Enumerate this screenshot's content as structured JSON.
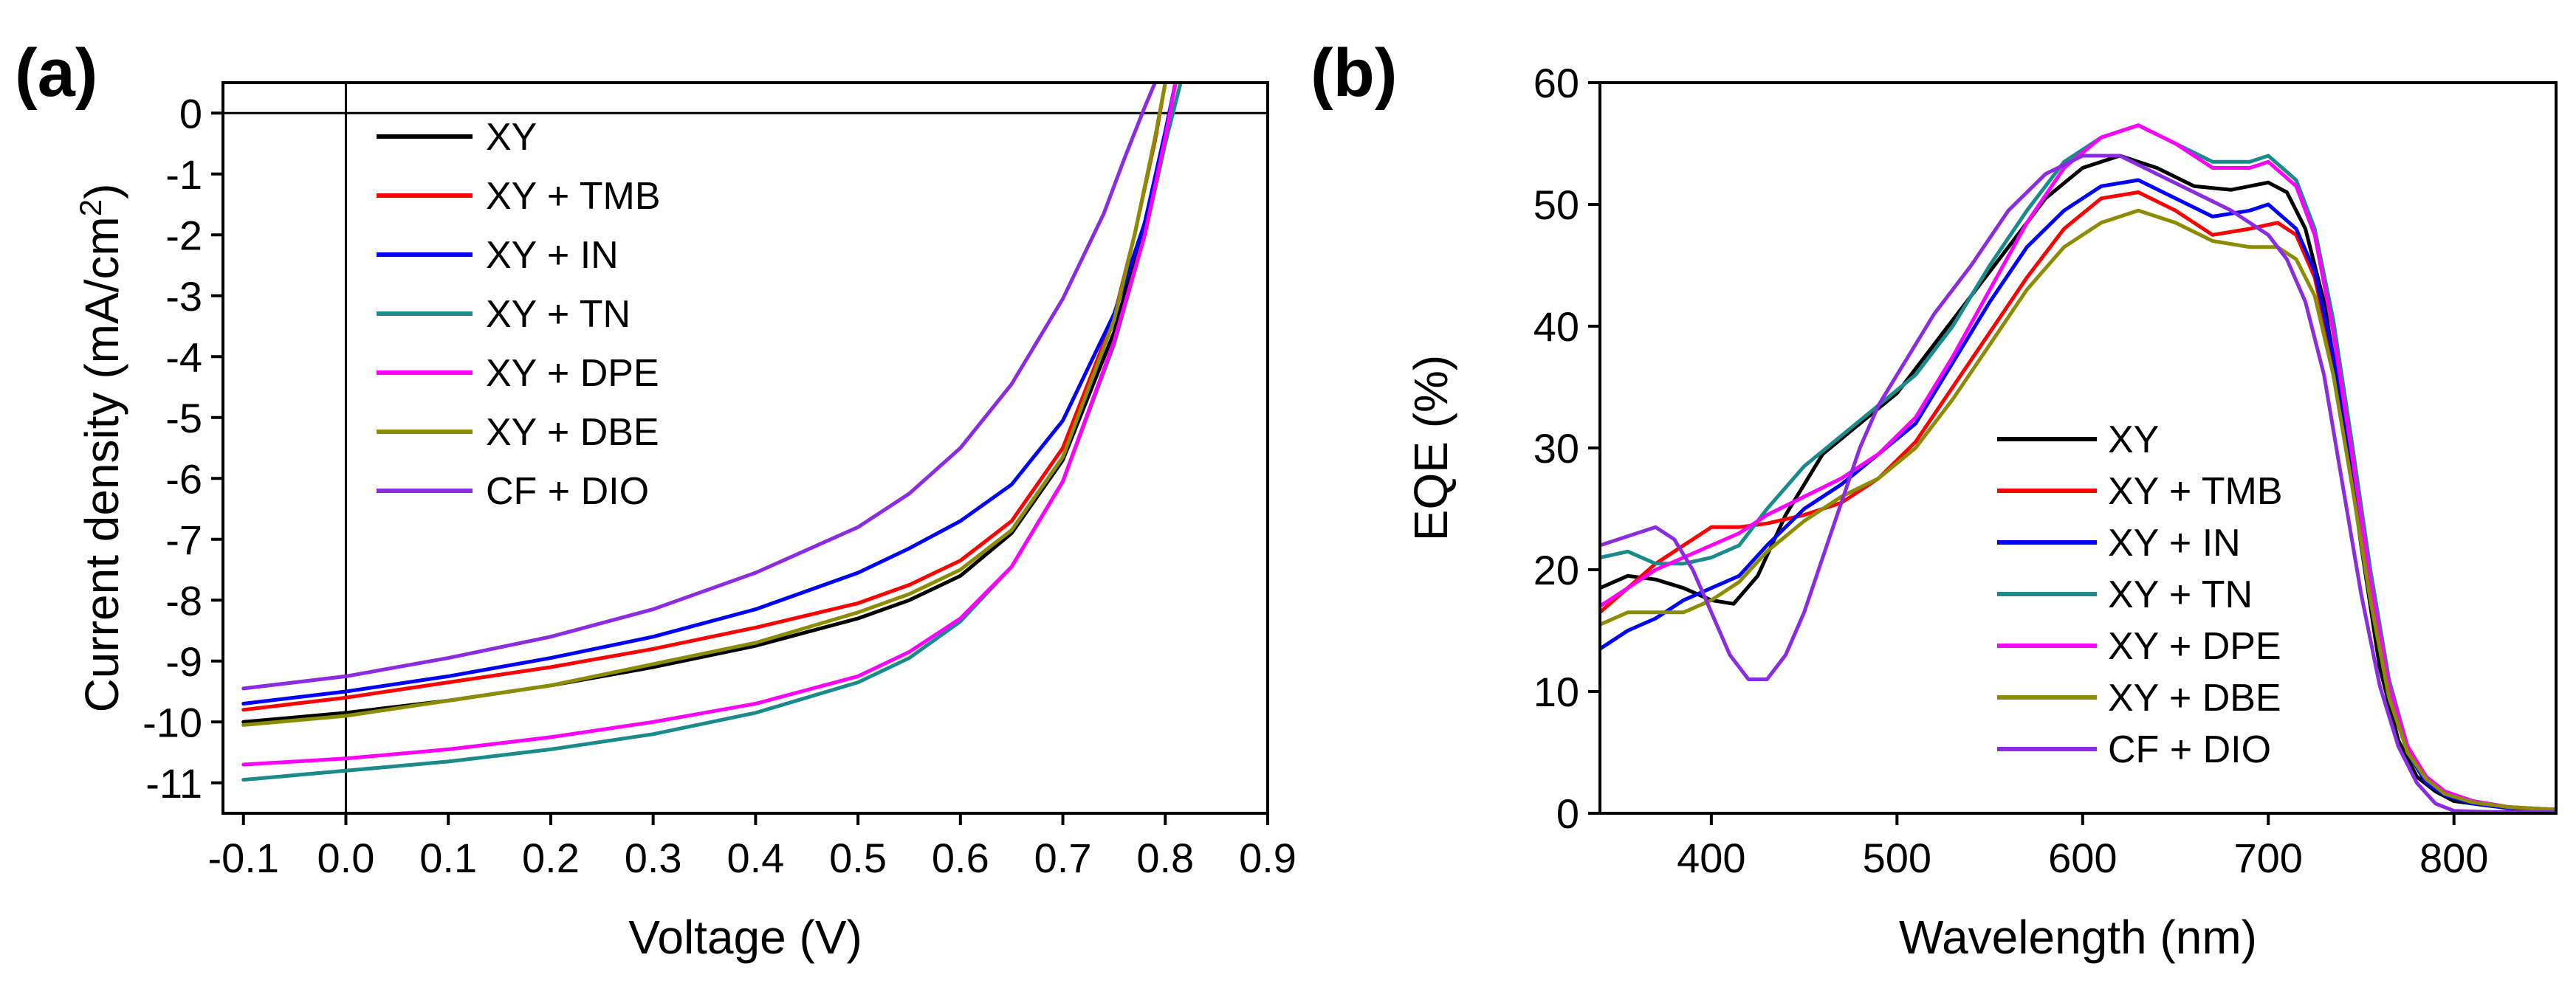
{
  "figure": {
    "panels": [
      {
        "id": "a",
        "label": "(a)"
      },
      {
        "id": "b",
        "label": "(b)"
      }
    ]
  },
  "chart_data": [
    {
      "panel": "(a)",
      "type": "line",
      "title": "",
      "xlabel": "Voltage (V)",
      "ylabel_main": "Current density (mA/cm",
      "ylabel_sup": "2",
      "ylabel_end": ")",
      "xlim": [
        -0.12,
        0.9
      ],
      "ylim": [
        -11.5,
        0.5
      ],
      "xticks": [
        -0.1,
        0.0,
        0.1,
        0.2,
        0.3,
        0.4,
        0.5,
        0.6,
        0.7,
        0.8,
        0.9
      ],
      "xtick_labels": [
        "-0.1",
        "0.0",
        "0.1",
        "0.2",
        "0.3",
        "0.4",
        "0.5",
        "0.6",
        "0.7",
        "0.8",
        "0.9"
      ],
      "yticks": [
        0,
        -1,
        -2,
        -3,
        -4,
        -5,
        -6,
        -7,
        -8,
        -9,
        -10,
        -11
      ],
      "ytick_labels": [
        "0",
        "-1",
        "-2",
        "-3",
        "-4",
        "-5",
        "-6",
        "-7",
        "-8",
        "-9",
        "-10",
        "-11"
      ],
      "reference_lines": {
        "x": 0,
        "y": 0
      },
      "legend_position": "top-left",
      "grid": false,
      "series": [
        {
          "name": "XY",
          "color": "#000000",
          "x": [
            -0.1,
            0,
            0.1,
            0.2,
            0.3,
            0.4,
            0.5,
            0.55,
            0.6,
            0.65,
            0.7,
            0.75,
            0.78,
            0.8,
            0.81
          ],
          "y": [
            -10.0,
            -9.85,
            -9.65,
            -9.4,
            -9.1,
            -8.75,
            -8.3,
            -8.0,
            -7.6,
            -6.9,
            -5.7,
            -3.6,
            -1.8,
            -0.35,
            0.5
          ]
        },
        {
          "name": "XY + TMB",
          "color": "#ff0000",
          "x": [
            -0.1,
            0,
            0.1,
            0.2,
            0.3,
            0.4,
            0.5,
            0.55,
            0.6,
            0.65,
            0.7,
            0.75,
            0.77,
            0.79,
            0.8
          ],
          "y": [
            -9.8,
            -9.6,
            -9.35,
            -9.1,
            -8.8,
            -8.45,
            -8.05,
            -7.75,
            -7.35,
            -6.7,
            -5.5,
            -3.35,
            -2.0,
            -0.45,
            0.5
          ]
        },
        {
          "name": "XY + IN",
          "color": "#0000ff",
          "x": [
            -0.1,
            0,
            0.1,
            0.2,
            0.3,
            0.4,
            0.5,
            0.55,
            0.6,
            0.65,
            0.7,
            0.75,
            0.78,
            0.8,
            0.81
          ],
          "y": [
            -9.7,
            -9.5,
            -9.25,
            -8.95,
            -8.6,
            -8.15,
            -7.55,
            -7.15,
            -6.7,
            -6.1,
            -5.05,
            -3.3,
            -1.8,
            -0.3,
            0.5
          ]
        },
        {
          "name": "XY + TN",
          "color": "#1a8a8a",
          "x": [
            -0.1,
            0,
            0.1,
            0.2,
            0.3,
            0.4,
            0.5,
            0.55,
            0.6,
            0.65,
            0.7,
            0.75,
            0.78,
            0.8,
            0.815
          ],
          "y": [
            -10.95,
            -10.8,
            -10.65,
            -10.45,
            -10.2,
            -9.85,
            -9.35,
            -8.95,
            -8.35,
            -7.45,
            -6.05,
            -3.8,
            -2.0,
            -0.5,
            0.5
          ]
        },
        {
          "name": "XY + DPE",
          "color": "#ff00ff",
          "x": [
            -0.1,
            0,
            0.1,
            0.2,
            0.3,
            0.4,
            0.5,
            0.55,
            0.6,
            0.65,
            0.7,
            0.75,
            0.78,
            0.8,
            0.81
          ],
          "y": [
            -10.7,
            -10.6,
            -10.45,
            -10.25,
            -10.0,
            -9.7,
            -9.25,
            -8.85,
            -8.3,
            -7.45,
            -6.05,
            -3.75,
            -2.0,
            -0.4,
            0.5
          ]
        },
        {
          "name": "XY + DBE",
          "color": "#8c8c00",
          "x": [
            -0.1,
            0,
            0.1,
            0.2,
            0.3,
            0.4,
            0.5,
            0.55,
            0.6,
            0.65,
            0.7,
            0.75,
            0.77,
            0.79,
            0.8
          ],
          "y": [
            -10.05,
            -9.9,
            -9.65,
            -9.4,
            -9.05,
            -8.7,
            -8.2,
            -7.9,
            -7.5,
            -6.85,
            -5.65,
            -3.4,
            -2.0,
            -0.4,
            0.5
          ]
        },
        {
          "name": "CF + DIO",
          "color": "#8b2be2",
          "x": [
            -0.1,
            0,
            0.1,
            0.2,
            0.3,
            0.4,
            0.5,
            0.55,
            0.6,
            0.65,
            0.7,
            0.74,
            0.76,
            0.78,
            0.79
          ],
          "y": [
            -9.45,
            -9.25,
            -8.95,
            -8.6,
            -8.15,
            -7.55,
            -6.8,
            -6.25,
            -5.5,
            -4.45,
            -3.05,
            -1.65,
            -0.75,
            0.1,
            0.5
          ]
        }
      ]
    },
    {
      "panel": "(b)",
      "type": "line",
      "title": "",
      "xlabel": "Wavelength (nm)",
      "ylabel": "EQE (%)",
      "xlim": [
        340,
        855
      ],
      "ylim": [
        0,
        60
      ],
      "xticks": [
        400,
        500,
        600,
        700,
        800
      ],
      "xtick_labels": [
        "400",
        "500",
        "600",
        "700",
        "800"
      ],
      "yticks": [
        0,
        10,
        20,
        30,
        40,
        50,
        60
      ],
      "ytick_labels": [
        "0",
        "10",
        "20",
        "30",
        "40",
        "50",
        "60"
      ],
      "legend_position": "lower-center",
      "grid": false,
      "series": [
        {
          "name": "XY",
          "color": "#000000",
          "x": [
            340,
            355,
            370,
            385,
            400,
            412,
            425,
            440,
            460,
            480,
            500,
            520,
            540,
            560,
            580,
            600,
            620,
            640,
            660,
            680,
            700,
            710,
            720,
            730,
            740,
            750,
            760,
            770,
            780,
            790,
            800,
            820,
            840,
            855
          ],
          "y": [
            18.5,
            19.5,
            19.2,
            18.5,
            17.5,
            17.2,
            19.5,
            24.5,
            29.5,
            32.0,
            34.5,
            38.5,
            42.5,
            46.5,
            50.5,
            53.0,
            54.0,
            53.0,
            51.5,
            51.2,
            51.8,
            51.0,
            48.0,
            42.0,
            33.0,
            22.0,
            12.0,
            6.0,
            3.0,
            1.8,
            1.0,
            0.6,
            0.4,
            0.3
          ]
        },
        {
          "name": "XY + TMB",
          "color": "#ff0000",
          "x": [
            340,
            355,
            370,
            385,
            400,
            415,
            430,
            450,
            470,
            490,
            510,
            530,
            550,
            570,
            590,
            610,
            630,
            650,
            670,
            690,
            705,
            715,
            725,
            735,
            745,
            755,
            765,
            775,
            785,
            795,
            810,
            830,
            855
          ],
          "y": [
            16.5,
            18.5,
            20.5,
            22.0,
            23.5,
            23.5,
            23.8,
            24.5,
            25.5,
            27.5,
            30.5,
            35.0,
            39.5,
            44.0,
            48.0,
            50.5,
            51.0,
            49.5,
            47.5,
            48.0,
            48.5,
            47.5,
            44.0,
            37.0,
            28.0,
            18.5,
            10.5,
            5.5,
            3.0,
            1.8,
            1.0,
            0.5,
            0.3
          ]
        },
        {
          "name": "XY + IN",
          "color": "#0000ff",
          "x": [
            340,
            355,
            370,
            385,
            400,
            415,
            430,
            450,
            470,
            490,
            510,
            530,
            550,
            570,
            590,
            610,
            630,
            650,
            670,
            690,
            700,
            715,
            725,
            735,
            745,
            755,
            765,
            775,
            785,
            795,
            810,
            830,
            855
          ],
          "y": [
            13.5,
            15.0,
            16.0,
            17.5,
            18.5,
            19.5,
            22.0,
            25.0,
            27.0,
            29.5,
            32.0,
            37.0,
            42.0,
            46.5,
            49.5,
            51.5,
            52.0,
            50.5,
            49.0,
            49.5,
            50.0,
            48.0,
            44.5,
            37.5,
            28.0,
            18.0,
            10.0,
            5.0,
            2.5,
            1.5,
            0.8,
            0.4,
            0.3
          ]
        },
        {
          "name": "XY + TN",
          "color": "#1a8a8a",
          "x": [
            340,
            355,
            370,
            385,
            400,
            415,
            430,
            450,
            470,
            490,
            510,
            530,
            550,
            570,
            590,
            610,
            630,
            650,
            670,
            690,
            700,
            715,
            725,
            735,
            745,
            755,
            765,
            775,
            785,
            795,
            810,
            830,
            855
          ],
          "y": [
            21.0,
            21.5,
            20.5,
            20.5,
            21.0,
            22.0,
            25.0,
            28.5,
            31.0,
            33.5,
            36.0,
            40.0,
            45.0,
            49.5,
            53.5,
            55.5,
            56.5,
            55.0,
            53.5,
            53.5,
            54.0,
            52.0,
            48.0,
            40.5,
            30.5,
            20.0,
            11.0,
            5.5,
            3.0,
            1.8,
            1.0,
            0.5,
            0.3
          ]
        },
        {
          "name": "XY + DPE",
          "color": "#ff00ff",
          "x": [
            340,
            355,
            370,
            385,
            400,
            415,
            430,
            450,
            470,
            490,
            510,
            530,
            550,
            570,
            590,
            610,
            630,
            650,
            670,
            690,
            700,
            715,
            725,
            735,
            745,
            755,
            765,
            775,
            785,
            795,
            810,
            830,
            855
          ],
          "y": [
            17.0,
            18.5,
            20.0,
            21.0,
            22.0,
            23.0,
            24.5,
            26.0,
            27.5,
            29.5,
            32.5,
            37.5,
            43.0,
            48.5,
            53.0,
            55.5,
            56.5,
            55.0,
            53.0,
            53.0,
            53.5,
            51.5,
            47.5,
            39.5,
            29.5,
            19.0,
            10.5,
            5.5,
            3.0,
            1.8,
            1.0,
            0.5,
            0.3
          ]
        },
        {
          "name": "XY + DBE",
          "color": "#8c8c00",
          "x": [
            340,
            355,
            370,
            385,
            400,
            415,
            430,
            450,
            470,
            490,
            510,
            530,
            550,
            570,
            590,
            610,
            630,
            650,
            670,
            690,
            705,
            715,
            725,
            735,
            745,
            755,
            765,
            775,
            785,
            795,
            810,
            830,
            855
          ],
          "y": [
            15.5,
            16.5,
            16.5,
            16.5,
            17.5,
            19.0,
            21.5,
            24.0,
            26.0,
            27.5,
            30.0,
            34.0,
            38.5,
            43.0,
            46.5,
            48.5,
            49.5,
            48.5,
            47.0,
            46.5,
            46.5,
            45.5,
            42.5,
            36.0,
            27.0,
            17.5,
            9.5,
            5.0,
            2.8,
            1.6,
            0.9,
            0.5,
            0.3
          ]
        },
        {
          "name": "CF + DIO",
          "color": "#8b2be2",
          "x": [
            340,
            350,
            360,
            370,
            380,
            390,
            400,
            410,
            420,
            430,
            440,
            450,
            460,
            470,
            480,
            490,
            500,
            520,
            540,
            560,
            580,
            600,
            620,
            640,
            660,
            680,
            690,
            700,
            710,
            720,
            730,
            740,
            750,
            760,
            770,
            780,
            790,
            800,
            820,
            855
          ],
          "y": [
            22.0,
            22.5,
            23.0,
            23.5,
            22.5,
            20.0,
            16.5,
            13.0,
            11.0,
            11.0,
            13.0,
            16.5,
            21.0,
            25.5,
            30.0,
            33.5,
            36.0,
            41.0,
            45.0,
            49.5,
            52.5,
            54.0,
            54.0,
            52.5,
            51.0,
            49.5,
            48.5,
            47.5,
            45.5,
            42.0,
            36.0,
            27.0,
            18.0,
            10.5,
            5.5,
            2.5,
            0.8,
            0.2,
            0.1,
            0.1
          ]
        }
      ]
    }
  ]
}
